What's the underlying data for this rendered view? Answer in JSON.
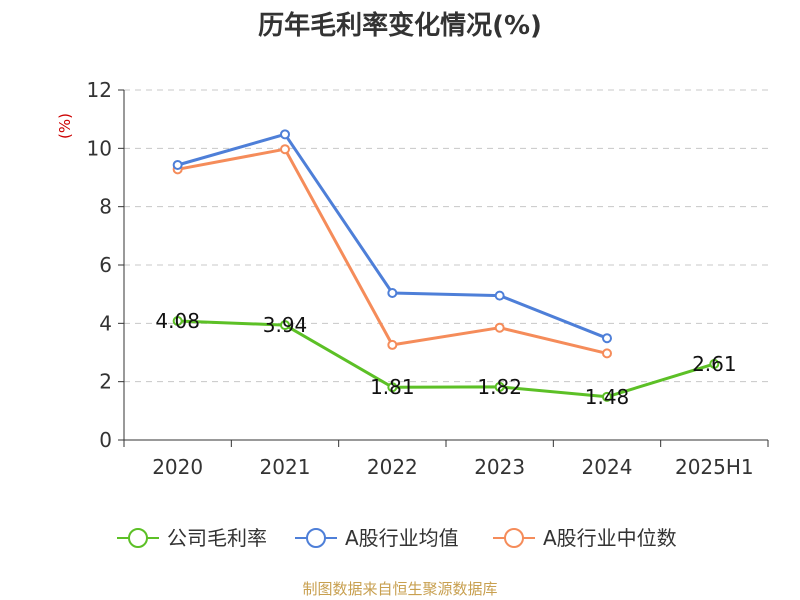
{
  "chart_data": {
    "type": "line",
    "title": "历年毛利率变化情况(%)",
    "xlabel": "",
    "ylabel": "(%)",
    "categories": [
      "2020",
      "2021",
      "2022",
      "2023",
      "2024",
      "2025H1"
    ],
    "ylim": [
      0,
      12
    ],
    "yticks": [
      0,
      2,
      4,
      6,
      8,
      10,
      12
    ],
    "grid": true,
    "series": [
      {
        "name": "公司毛利率",
        "color": "#5cc026",
        "values": [
          4.08,
          3.94,
          1.81,
          1.82,
          1.48,
          2.61
        ],
        "labels": [
          "4.08",
          "3.94",
          "1.81",
          "1.82",
          "1.48",
          "2.61"
        ]
      },
      {
        "name": "A股行业均值",
        "color": "#4e7fd8",
        "values": [
          9.43,
          10.48,
          5.04,
          4.95,
          3.49,
          null
        ]
      },
      {
        "name": "A股行业中位数",
        "color": "#f58c5a",
        "values": [
          9.28,
          9.97,
          3.26,
          3.85,
          2.97,
          null
        ]
      }
    ],
    "legend_position": "bottom",
    "source": "制图数据来自恒生聚源数据库"
  }
}
